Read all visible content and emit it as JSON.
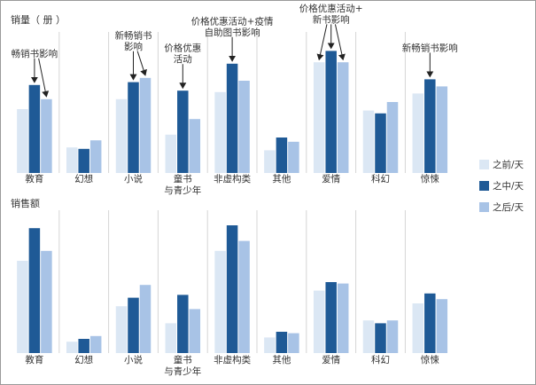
{
  "chart_data": {
    "type": "bar",
    "categories": [
      "教育",
      "幻想",
      "小说",
      "童书\n与青少年",
      "非虚构类",
      "其他",
      "爱情",
      "科幻",
      "惊悚"
    ],
    "colors": {
      "之前/天": "#dbe7f4",
      "之中/天": "#1f5a96",
      "之后/天": "#a8c3e6",
      "divider": "#d5d5d5",
      "text": "#333333",
      "arrow": "#222222"
    },
    "legend": {
      "placement": "right",
      "entries": [
        "之前/天",
        "之中/天",
        "之后/天"
      ]
    },
    "grid": false,
    "panels": [
      {
        "title": "销量（ 册 ）",
        "ylim": [
          0,
          100
        ],
        "series": [
          {
            "name": "之前/天",
            "values": [
              45,
              18,
              52,
              27,
              57,
              16,
              78,
              44,
              56
            ]
          },
          {
            "name": "之中/天",
            "values": [
              62,
              17,
              64,
              58,
              77,
              25,
              86,
              42,
              66
            ]
          },
          {
            "name": "之后/天",
            "values": [
              52,
              23,
              67,
              38,
              65,
              22,
              78,
              50,
              61
            ]
          }
        ],
        "annotations": [
          {
            "category_index": 0,
            "text": "畅销书影响",
            "targets": [
              1,
              2
            ]
          },
          {
            "category_index": 2,
            "text": "新畅销书\n影响",
            "targets": [
              1,
              2
            ]
          },
          {
            "category_index": 3,
            "text": "价格优惠\n活动",
            "targets": [
              1
            ]
          },
          {
            "category_index": 4,
            "text": "价格优惠活动+疫情\n自助图书影响",
            "targets": [
              1
            ]
          },
          {
            "category_index": 6,
            "text": "价格优惠活动+\n新书影响",
            "targets": [
              0,
              1,
              2
            ]
          },
          {
            "category_index": 8,
            "text": "新畅销书影响",
            "targets": [
              1
            ]
          }
        ]
      },
      {
        "title": "销售额",
        "ylim": [
          0,
          100
        ],
        "series": [
          {
            "name": "之前/天",
            "values": [
              65,
              8,
              33,
              21,
              72,
              11,
              44,
              23,
              35
            ]
          },
          {
            "name": "之中/天",
            "values": [
              88,
              10,
              39,
              41,
              90,
              15,
              50,
              21,
              42
            ]
          },
          {
            "name": "之后/天",
            "values": [
              72,
              12,
              48,
              31,
              79,
              14,
              49,
              23,
              38
            ]
          }
        ],
        "annotations": []
      }
    ]
  }
}
